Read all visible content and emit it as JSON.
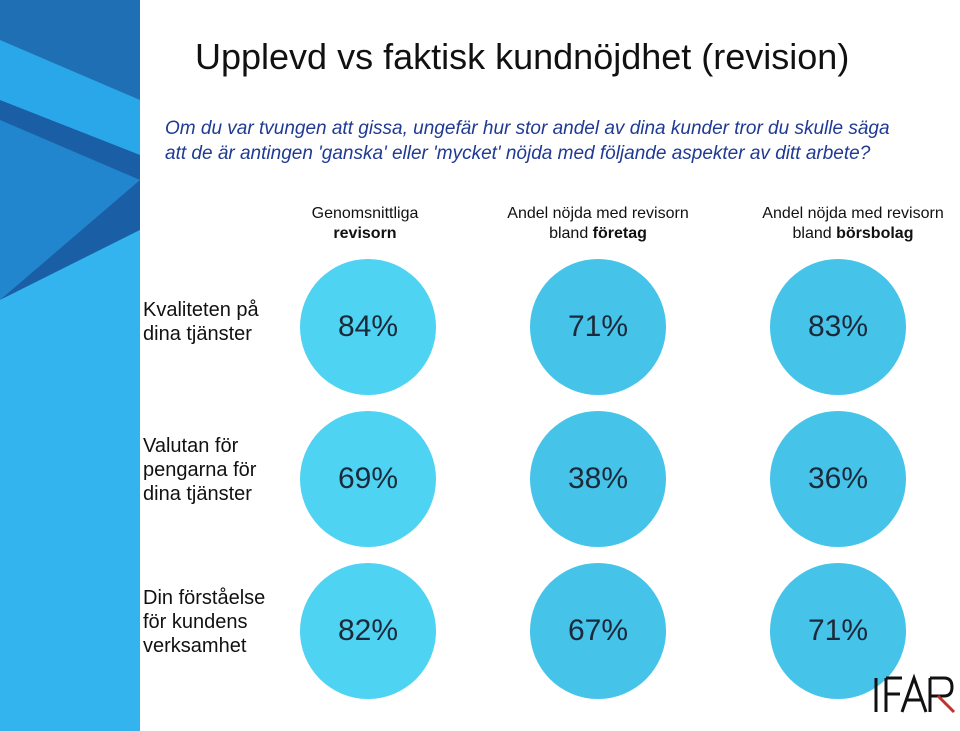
{
  "title": "Upplevd vs faktisk kundnöjdhet (revision)",
  "question": "Om du var tvungen att gissa, ungefär hur stor andel av dina kunder tror du skulle säga att de är antingen  'ganska' eller 'mycket' nöjda med följande aspekter av ditt arbete?",
  "logo_text": "FAR",
  "colors": {
    "accent_dark": "#1f6fb5",
    "accent_mid": "#3a9fe0",
    "bubble_light": "#4fd3f2",
    "bubble_mid": "#45c3e8"
  },
  "chart_data": {
    "type": "table",
    "columns": [
      {
        "line1": "Genomsnittliga",
        "line2_pre": "",
        "line2_bold": "revisorn"
      },
      {
        "line1": "Andel nöjda med revisorn",
        "line2_pre": "bland ",
        "line2_bold": "företag"
      },
      {
        "line1": "Andel nöjda med revisorn",
        "line2_pre": "bland ",
        "line2_bold": "börsbolag"
      }
    ],
    "rows": [
      {
        "label_lines": [
          "Kvaliteten på",
          "dina tjänster"
        ],
        "values": [
          "84%",
          "71%",
          "83%"
        ]
      },
      {
        "label_lines": [
          "Valutan för",
          "pengarna för",
          "dina tjänster"
        ],
        "values": [
          "69%",
          "38%",
          "36%"
        ]
      },
      {
        "label_lines": [
          "Din förståelse",
          "för kundens",
          "verksamhet"
        ],
        "values": [
          "82%",
          "67%",
          "71%"
        ]
      }
    ]
  }
}
